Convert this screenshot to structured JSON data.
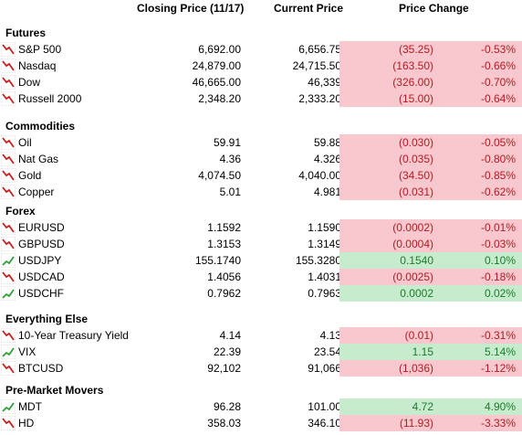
{
  "headers": {
    "closing": "Closing Price (11/17)",
    "current": "Current Price",
    "change": "Price Change"
  },
  "colors": {
    "down_bg": "#f8c8ce",
    "down_text": "#b11c22",
    "up_bg": "#c7eccd",
    "up_text": "#1d7a2c",
    "down_icon": "#c42121",
    "up_icon": "#2f9e3a"
  },
  "sections": [
    {
      "title": "Futures",
      "rows": [
        {
          "name": "S&P 500",
          "close": "6,692.00",
          "current": "6,656.75",
          "change": "(35.25)",
          "pct": "-0.53%",
          "dir": "down",
          "icon": "trend-down-icon"
        },
        {
          "name": "Nasdaq",
          "close": "24,879.00",
          "current": "24,715.50",
          "change": "(163.50)",
          "pct": "-0.66%",
          "dir": "down",
          "icon": "trend-down-icon"
        },
        {
          "name": "Dow",
          "close": "46,665.00",
          "current": "46,339",
          "change": "(326.00)",
          "pct": "-0.70%",
          "dir": "down",
          "icon": "trend-down-icon"
        },
        {
          "name": "Russell 2000",
          "close": "2,348.20",
          "current": "2,333.20",
          "change": "(15.00)",
          "pct": "-0.64%",
          "dir": "down",
          "icon": "trend-down-icon"
        }
      ]
    },
    {
      "title": "Commodities",
      "rows": [
        {
          "name": "Oil",
          "close": "59.91",
          "current": "59.88",
          "change": "(0.030)",
          "pct": "-0.05%",
          "dir": "down",
          "icon": "trend-down-icon"
        },
        {
          "name": "Nat Gas",
          "close": "4.36",
          "current": "4.326",
          "change": "(0.035)",
          "pct": "-0.80%",
          "dir": "down",
          "icon": "trend-down-icon"
        },
        {
          "name": "Gold",
          "close": "4,074.50",
          "current": "4,040.00",
          "change": "(34.50)",
          "pct": "-0.85%",
          "dir": "down",
          "icon": "trend-down-icon"
        },
        {
          "name": "Copper",
          "close": "5.01",
          "current": "4.981",
          "change": "(0.031)",
          "pct": "-0.62%",
          "dir": "down",
          "icon": "trend-down-icon"
        }
      ]
    },
    {
      "title": "Forex",
      "rows": [
        {
          "name": "EURUSD",
          "close": "1.1592",
          "current": "1.1590",
          "change": "(0.0002)",
          "pct": "-0.01%",
          "dir": "down",
          "icon": "trend-down-icon"
        },
        {
          "name": "GBPUSD",
          "close": "1.3153",
          "current": "1.3149",
          "change": "(0.0004)",
          "pct": "-0.03%",
          "dir": "down",
          "icon": "trend-down-icon"
        },
        {
          "name": "USDJPY",
          "close": "155.1740",
          "current": "155.3280",
          "change": "0.1540",
          "pct": "0.10%",
          "dir": "up",
          "icon": "trend-up-icon"
        },
        {
          "name": "USDCAD",
          "close": "1.4056",
          "current": "1.4031",
          "change": "(0.0025)",
          "pct": "-0.18%",
          "dir": "down",
          "icon": "trend-down-icon"
        },
        {
          "name": "USDCHF",
          "close": "0.7962",
          "current": "0.7963",
          "change": "0.0002",
          "pct": "0.02%",
          "dir": "up",
          "icon": "trend-up-icon"
        }
      ]
    },
    {
      "title": "Everything Else",
      "rows": [
        {
          "name": "10-Year Treasury Yield",
          "close": "4.14",
          "current": "4.13",
          "change": "(0.01)",
          "pct": "-0.31%",
          "dir": "down",
          "icon": "trend-down-icon"
        },
        {
          "name": "VIX",
          "close": "22.39",
          "current": "23.54",
          "change": "1.15",
          "pct": "5.14%",
          "dir": "up",
          "icon": "trend-up-icon"
        },
        {
          "name": "BTCUSD",
          "close": "92,102",
          "current": "91,066",
          "change": "(1,036)",
          "pct": "-1.12%",
          "dir": "down",
          "icon": "trend-down-icon"
        }
      ]
    },
    {
      "title": "Pre-Market Movers",
      "rows": [
        {
          "name": "MDT",
          "close": "96.28",
          "current": "101.00",
          "change": "4.72",
          "pct": "4.90%",
          "dir": "up",
          "icon": "trend-up-icon"
        },
        {
          "name": "HD",
          "close": "358.03",
          "current": "346.10",
          "change": "(11.93)",
          "pct": "-3.33%",
          "dir": "down",
          "icon": "trend-down-icon"
        }
      ]
    }
  ]
}
